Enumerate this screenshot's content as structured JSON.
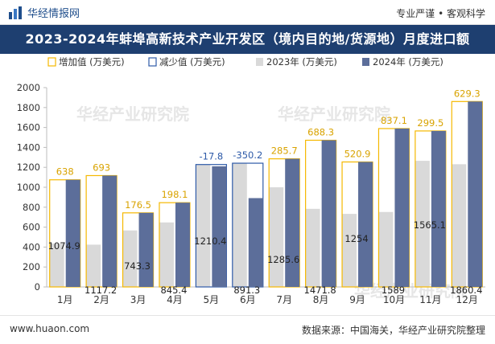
{
  "header": {
    "brand": "华经情报网",
    "tagline": "专业严谨 • 客观科学"
  },
  "title": "2023-2024年蚌埠高新技术产业开发区（境内目的地/货源地）月度进口额",
  "footer": {
    "website": "www.huaon.com",
    "source": "数据来源：中国海关，华经产业研究院整理"
  },
  "watermark": "华经产业研究院",
  "colors": {
    "increase": "#f5b800",
    "decrease": "#2e5aa8",
    "series_2023": "#d9d9d9",
    "series_2024": "#5c6e9a",
    "title_bg": "#1e3f70"
  },
  "chart_data": {
    "type": "bar",
    "categories": [
      "1月",
      "2月",
      "3月",
      "4月",
      "5月",
      "6月",
      "7月",
      "8月",
      "9月",
      "10月",
      "11月",
      "12月"
    ],
    "legend": [
      "增加值 (万美元)",
      "减少值 (万美元)",
      "2023年 (万美元)",
      "2024年 (万美元)"
    ],
    "series": [
      {
        "name": "2023年 (万美元)",
        "values": [
          436.9,
          424.2,
          566.8,
          647.3,
          1228.2,
          1241.5,
          999.9,
          783.5,
          733.1,
          751.9,
          1265.6,
          1231.3
        ]
      },
      {
        "name": "2024年 (万美元)",
        "values": [
          1074.9,
          1117.2,
          743.3,
          845.4,
          1210.4,
          891.3,
          1285.6,
          1471.8,
          1254,
          1589,
          1565.1,
          1860.4
        ]
      }
    ],
    "changes": [
      638,
      693,
      176.5,
      198.1,
      -17.8,
      -350.2,
      285.7,
      688.3,
      520.9,
      837.1,
      299.5,
      629.3
    ],
    "change_labels": [
      "638",
      "693",
      "176.5",
      "198.1",
      "-17.8",
      "-350.2",
      "285.7",
      "688.3",
      "520.9",
      "837.1",
      "299.5",
      "629.3"
    ],
    "value_labels_2024": [
      "1074.9",
      "1117.2",
      "743.3",
      "845.4",
      "1210.4",
      "891.3",
      "1285.6",
      "1471.8",
      "1254",
      "1589",
      "1565.1",
      "1860.4"
    ],
    "ylim": [
      0,
      2000
    ],
    "yticks": [
      0,
      200,
      400,
      600,
      800,
      1000,
      1200,
      1400,
      1600,
      1800,
      2000
    ],
    "legend_position": "top-left",
    "grid": false
  }
}
